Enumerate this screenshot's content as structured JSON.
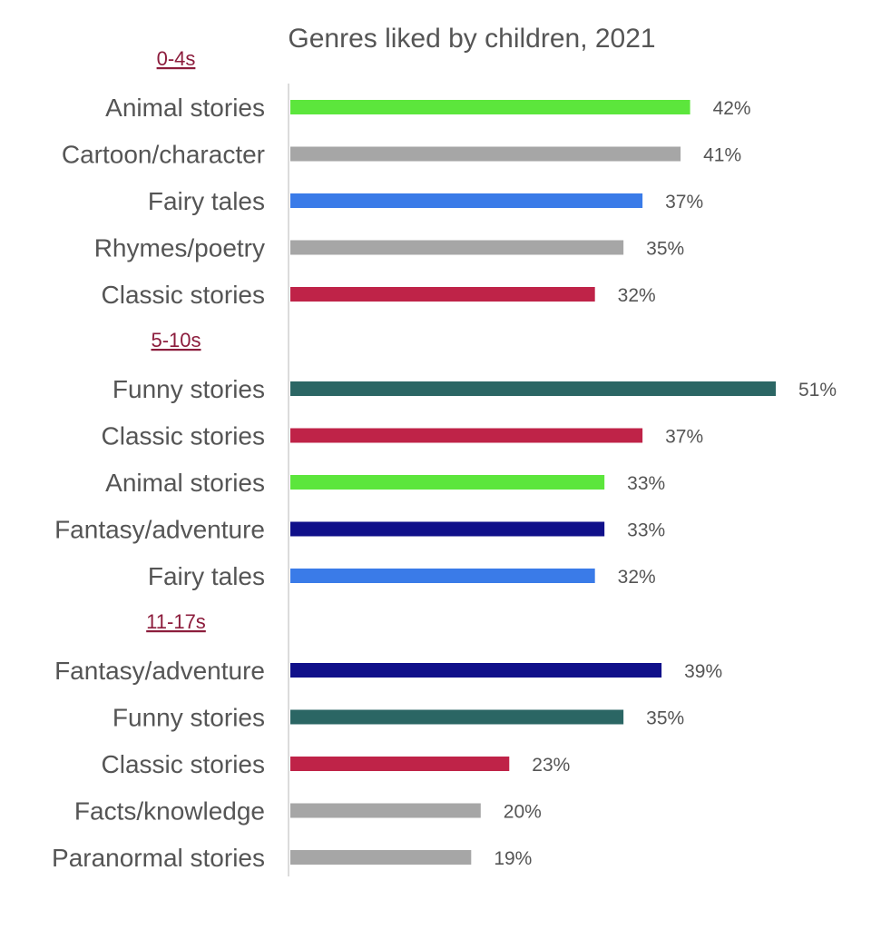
{
  "chart_data": {
    "type": "bar",
    "orientation": "horizontal",
    "title": "Genres liked by children, 2021",
    "value_suffix": "%",
    "xlim": [
      0,
      51
    ],
    "grid": false,
    "groups": [
      {
        "label": "0-4s",
        "bars": [
          {
            "category": "Animal stories",
            "value": 42,
            "label": "42%",
            "color": "#5ce63c"
          },
          {
            "category": "Cartoon/character",
            "value": 41,
            "label": "41%",
            "color": "#a6a6a6"
          },
          {
            "category": "Fairy tales",
            "value": 37,
            "label": "37%",
            "color": "#3a7be8"
          },
          {
            "category": "Rhymes/poetry",
            "value": 35,
            "label": "35%",
            "color": "#a6a6a6"
          },
          {
            "category": "Classic stories",
            "value": 32,
            "label": "32%",
            "color": "#bf2348"
          }
        ]
      },
      {
        "label": "5-10s",
        "bars": [
          {
            "category": "Funny stories",
            "value": 51,
            "label": "51%",
            "color": "#2b6664"
          },
          {
            "category": "Classic stories",
            "value": 37,
            "label": "37%",
            "color": "#bf2348"
          },
          {
            "category": "Animal stories",
            "value": 33,
            "label": "33%",
            "color": "#5ce63c"
          },
          {
            "category": "Fantasy/adventure",
            "value": 33,
            "label": "33%",
            "color": "#10108a"
          },
          {
            "category": "Fairy tales",
            "value": 32,
            "label": "32%",
            "color": "#3a7be8"
          }
        ]
      },
      {
        "label": "11-17s",
        "bars": [
          {
            "category": "Fantasy/adventure",
            "value": 39,
            "label": "39%",
            "color": "#10108a"
          },
          {
            "category": "Funny stories",
            "value": 35,
            "label": "35%",
            "color": "#2b6664"
          },
          {
            "category": "Classic stories",
            "value": 23,
            "label": "23%",
            "color": "#bf2348"
          },
          {
            "category": "Facts/knowledge",
            "value": 20,
            "label": "20%",
            "color": "#a6a6a6"
          },
          {
            "category": "Paranormal stories",
            "value": 19,
            "label": "19%",
            "color": "#a6a6a6"
          }
        ]
      }
    ]
  }
}
